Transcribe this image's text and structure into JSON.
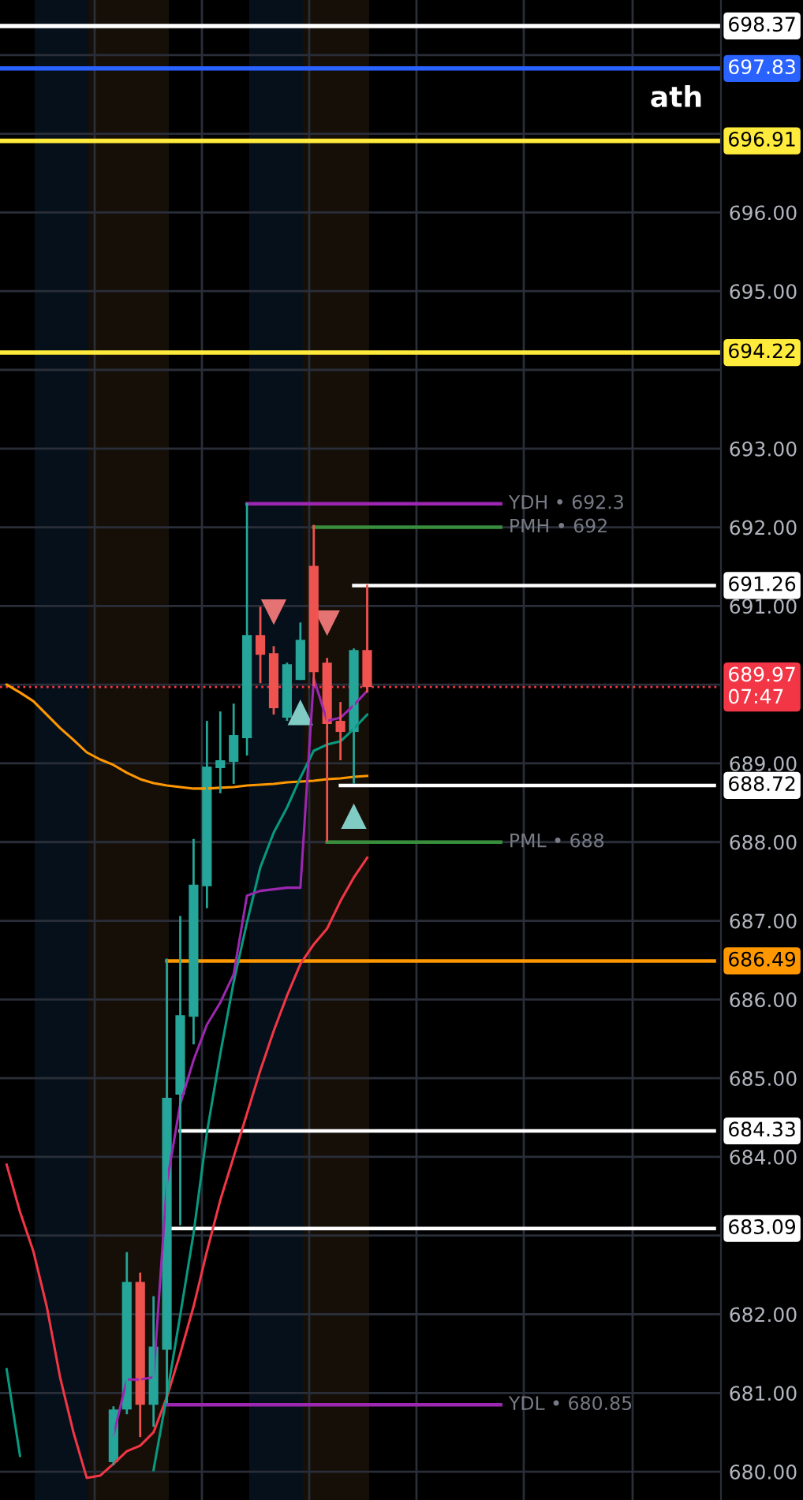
{
  "chart_data": {
    "type": "candlestick",
    "categories": [
      null,
      null,
      null,
      null,
      null,
      null,
      null,
      null,
      null,
      null,
      null,
      null,
      null,
      null,
      null,
      null,
      null,
      null,
      null,
      null,
      null,
      null,
      null,
      null,
      null,
      null,
      null,
      null,
      null,
      null,
      null,
      null,
      null,
      null,
      null,
      null,
      null,
      null,
      null,
      null,
      null,
      null,
      null,
      null,
      null,
      null,
      null,
      null,
      null,
      null,
      null,
      null,
      null,
      null
    ],
    "ohlc": [
      null,
      null,
      null,
      null,
      null,
      null,
      null,
      null,
      [
        680.12,
        680.83,
        680.08,
        680.79
      ],
      [
        680.79,
        682.79,
        680.73,
        682.41
      ],
      [
        682.41,
        682.53,
        680.44,
        680.85
      ],
      [
        680.85,
        682.23,
        680.57,
        681.59
      ],
      [
        681.55,
        686.52,
        680.87,
        684.75
      ],
      [
        684.79,
        687.06,
        683.13,
        685.8
      ],
      [
        685.78,
        688.04,
        685.43,
        687.46
      ],
      [
        687.44,
        689.54,
        687.16,
        688.96
      ],
      [
        688.94,
        689.66,
        688.62,
        689.04
      ],
      [
        689.02,
        689.76,
        688.74,
        689.36
      ],
      [
        689.32,
        692.31,
        689.1,
        690.63
      ],
      [
        690.63,
        690.99,
        690.02,
        690.38
      ],
      [
        690.4,
        690.49,
        689.62,
        689.7
      ],
      [
        689.58,
        690.28,
        689.54,
        690.26
      ],
      [
        690.06,
        690.79,
        690.06,
        690.57
      ],
      [
        691.51,
        692.03,
        689.98,
        690.16
      ],
      [
        690.28,
        690.34,
        688.0,
        689.5
      ],
      [
        689.54,
        689.78,
        689.04,
        689.4
      ],
      [
        689.4,
        690.46,
        688.74,
        690.44
      ],
      [
        690.44,
        691.27,
        689.9,
        689.97
      ],
      null,
      null,
      null,
      null,
      null,
      null,
      null,
      null,
      null,
      null,
      null,
      null,
      null,
      null,
      null,
      null,
      null,
      null,
      null,
      null,
      null,
      null,
      null,
      null,
      null,
      null
    ],
    "colors": [
      null,
      null,
      null,
      null,
      null,
      null,
      null,
      null,
      "#26a69a",
      "#26a69a",
      "#ef5350",
      "#26a69a",
      "#26a69a",
      "#26a69a",
      "#26a69a",
      "#26a69a",
      "#26a69a",
      "#26a69a",
      "#26a69a",
      "#ef5350",
      "#ef5350",
      "#26a69a",
      "#26a69a",
      "#ef5350",
      "#ef5350",
      "#ef5350",
      "#26a69a",
      "#ef5350",
      null,
      null,
      null,
      null,
      null,
      null,
      null,
      null,
      null,
      null,
      null,
      null,
      null,
      null,
      null,
      null,
      null,
      null,
      null,
      null,
      null,
      null,
      null,
      null,
      null,
      null
    ],
    "series": [
      {
        "type": "line",
        "color": "#ff9800",
        "values": [
          690.0,
          689.9,
          689.79,
          689.62,
          689.45,
          689.3,
          689.14,
          689.05,
          688.98,
          688.88,
          688.8,
          688.75,
          688.72,
          688.7,
          688.68,
          688.68,
          688.69,
          688.7,
          688.72,
          688.73,
          688.74,
          688.76,
          688.77,
          688.78,
          688.8,
          688.81,
          688.83,
          688.84,
          null,
          null,
          null,
          null,
          null,
          null,
          null,
          null,
          null,
          null,
          null,
          null,
          null,
          null,
          null,
          null,
          null,
          null,
          null,
          null,
          null,
          null,
          null,
          null,
          null,
          null
        ]
      },
      {
        "type": "line",
        "color": "#f23645",
        "values": [
          683.9,
          683.3,
          682.8,
          682.1,
          681.2,
          680.5,
          679.92,
          679.95,
          680.1,
          680.26,
          680.33,
          680.5,
          680.95,
          681.5,
          682.1,
          682.8,
          683.45,
          684.0,
          684.55,
          685.1,
          685.6,
          686.05,
          686.45,
          686.7,
          686.9,
          687.25,
          687.55,
          687.8,
          null,
          null,
          null,
          null,
          null,
          null,
          null,
          null,
          null,
          null,
          null,
          null,
          null,
          null,
          null,
          null,
          null,
          null,
          null,
          null,
          null,
          null,
          null,
          null,
          null,
          null
        ]
      },
      {
        "type": "line",
        "color": "#089981",
        "values": [
          681.3,
          680.2,
          null,
          null,
          null,
          null,
          null,
          null,
          null,
          null,
          null,
          680.02,
          680.97,
          681.99,
          683.03,
          684.31,
          685.31,
          686.22,
          686.98,
          687.68,
          688.12,
          688.44,
          688.82,
          689.16,
          689.24,
          689.28,
          689.44,
          689.62,
          null,
          null,
          null,
          null,
          null,
          null,
          null,
          null,
          null,
          null,
          null,
          null,
          null,
          null,
          null,
          null,
          null,
          null,
          null,
          null,
          null,
          null,
          null,
          null,
          null,
          null
        ]
      },
      {
        "type": "line",
        "color": "#9c27b0",
        "values": [
          null,
          null,
          null,
          null,
          null,
          null,
          null,
          null,
          680.46,
          681.17,
          681.17,
          681.2,
          683.67,
          684.67,
          685.23,
          685.68,
          685.96,
          686.32,
          687.32,
          687.38,
          687.4,
          687.42,
          687.42,
          690.08,
          689.54,
          689.58,
          689.74,
          689.92,
          null,
          null,
          null,
          null,
          null,
          null,
          null,
          null,
          null,
          null,
          null,
          null,
          null,
          null,
          null,
          null,
          null,
          null,
          null,
          null,
          null,
          null,
          null,
          null,
          null,
          null
        ]
      },
      {
        "type": "line",
        "name": "686.49",
        "color": "#ff9800",
        "values": [
          null,
          null,
          null,
          null,
          null,
          null,
          null,
          null,
          null,
          null,
          null,
          null,
          686.49,
          686.49,
          686.49,
          686.49,
          686.49,
          686.49,
          686.49,
          686.49,
          686.49,
          686.49,
          686.49,
          686.49,
          686.49,
          686.49,
          686.49,
          686.49,
          686.49,
          686.49,
          686.49,
          686.49,
          686.49,
          686.49,
          686.49,
          686.49,
          686.49,
          686.49,
          686.49,
          686.49,
          686.49,
          686.49,
          686.49,
          686.49,
          686.49,
          686.49,
          686.49,
          686.49,
          686.49,
          686.49,
          686.49,
          686.49,
          686.49,
          686.49
        ]
      },
      {
        "type": "line",
        "name": "684.33",
        "color": "#ffffff",
        "values": [
          null,
          null,
          null,
          null,
          null,
          null,
          null,
          null,
          null,
          null,
          null,
          null,
          null,
          684.33,
          684.33,
          684.33,
          684.33,
          684.33,
          684.33,
          684.33,
          684.33,
          684.33,
          684.33,
          684.33,
          684.33,
          684.33,
          684.33,
          684.33,
          684.33,
          684.33,
          684.33,
          684.33,
          684.33,
          684.33,
          684.33,
          684.33,
          684.33,
          684.33,
          684.33,
          684.33,
          684.33,
          684.33,
          684.33,
          684.33,
          684.33,
          684.33,
          684.33,
          684.33,
          684.33,
          684.33,
          684.33,
          684.33,
          684.33,
          684.33
        ]
      },
      {
        "type": "line",
        "name": "683.09",
        "color": "#ffffff",
        "values": [
          null,
          null,
          null,
          null,
          null,
          null,
          null,
          null,
          null,
          null,
          null,
          null,
          683.09,
          683.09,
          683.09,
          683.09,
          683.09,
          683.09,
          683.09,
          683.09,
          683.09,
          683.09,
          683.09,
          683.09,
          683.09,
          683.09,
          683.09,
          683.09,
          683.09,
          683.09,
          683.09,
          683.09,
          683.09,
          683.09,
          683.09,
          683.09,
          683.09,
          683.09,
          683.09,
          683.09,
          683.09,
          683.09,
          683.09,
          683.09,
          683.09,
          683.09,
          683.09,
          683.09,
          683.09,
          683.09,
          683.09,
          683.09,
          683.09,
          683.09
        ]
      },
      {
        "type": "line",
        "name": "688.72",
        "color": "#ffffff",
        "values": [
          null,
          null,
          null,
          null,
          null,
          null,
          null,
          null,
          null,
          null,
          null,
          null,
          null,
          null,
          null,
          null,
          null,
          null,
          null,
          null,
          null,
          null,
          null,
          null,
          null,
          688.72,
          688.72,
          688.72,
          688.72,
          688.72,
          688.72,
          688.72,
          688.72,
          688.72,
          688.72,
          688.72,
          688.72,
          688.72,
          688.72,
          688.72,
          688.72,
          688.72,
          688.72,
          688.72,
          688.72,
          688.72,
          688.72,
          688.72,
          688.72,
          688.72,
          688.72,
          688.72,
          688.72,
          688.72
        ]
      },
      {
        "type": "line",
        "name": "691.26",
        "color": "#ffffff",
        "values": [
          null,
          null,
          null,
          null,
          null,
          null,
          null,
          null,
          null,
          null,
          null,
          null,
          null,
          null,
          null,
          null,
          null,
          null,
          null,
          null,
          null,
          null,
          null,
          null,
          null,
          null,
          691.26,
          691.26,
          691.26,
          691.26,
          691.26,
          691.26,
          691.26,
          691.26,
          691.26,
          691.26,
          691.26,
          691.26,
          691.26,
          691.26,
          691.26,
          691.26,
          691.26,
          691.26,
          691.26,
          691.26,
          691.26,
          691.26,
          691.26,
          691.26,
          691.26,
          691.26,
          691.26,
          691.26
        ]
      },
      {
        "type": "line",
        "name": "YDH • 692.3",
        "color": "#9c27b0",
        "values": [
          null,
          null,
          null,
          null,
          null,
          null,
          null,
          null,
          null,
          null,
          null,
          null,
          null,
          null,
          null,
          null,
          null,
          null,
          692.3,
          692.3,
          692.3,
          692.3,
          692.3,
          692.3,
          692.3,
          692.3,
          692.3,
          692.3,
          692.3,
          692.3,
          692.3,
          692.3,
          692.3,
          692.3,
          692.3,
          692.3,
          692.3,
          692.3,
          null,
          null,
          null,
          null,
          null,
          null,
          null,
          null,
          null,
          null,
          null,
          null,
          null,
          null,
          null,
          null
        ]
      },
      {
        "type": "line",
        "name": "PMH • 692",
        "color": "#388e3c",
        "values": [
          null,
          null,
          null,
          null,
          null,
          null,
          null,
          null,
          null,
          null,
          null,
          null,
          null,
          null,
          null,
          null,
          null,
          null,
          null,
          null,
          null,
          null,
          null,
          692,
          692,
          692,
          692,
          692,
          692,
          692,
          692,
          692,
          692,
          692,
          692,
          692,
          692,
          692,
          null,
          null,
          null,
          null,
          null,
          null,
          null,
          null,
          null,
          null,
          null,
          null,
          null,
          null,
          null,
          null
        ]
      },
      {
        "type": "line",
        "name": "PML • 688",
        "color": "#388e3c",
        "values": [
          null,
          null,
          null,
          null,
          null,
          null,
          null,
          null,
          null,
          null,
          null,
          null,
          null,
          null,
          null,
          null,
          null,
          null,
          null,
          null,
          null,
          null,
          null,
          null,
          688,
          688,
          688,
          688,
          688,
          688,
          688,
          688,
          688,
          688,
          688,
          688,
          688,
          688,
          null,
          null,
          null,
          null,
          null,
          null,
          null,
          null,
          null,
          null,
          null,
          null,
          null,
          null,
          null,
          null
        ]
      },
      {
        "type": "line",
        "name": "YDL • 680.85",
        "color": "#9c27b0",
        "values": [
          null,
          null,
          null,
          null,
          null,
          null,
          null,
          null,
          null,
          null,
          null,
          null,
          680.85,
          680.85,
          680.85,
          680.85,
          680.85,
          680.85,
          680.85,
          680.85,
          680.85,
          680.85,
          680.85,
          680.85,
          680.85,
          680.85,
          680.85,
          680.85,
          680.85,
          680.85,
          680.85,
          680.85,
          680.85,
          680.85,
          680.85,
          680.85,
          680.85,
          680.85,
          null,
          null,
          null,
          null,
          null,
          null,
          null,
          null,
          null,
          null,
          null,
          null,
          null,
          null,
          null,
          null
        ]
      },
      {
        "type": "scatter",
        "marker": "triangle_down",
        "color": "#e57373",
        "values": [
          null,
          null,
          null,
          null,
          null,
          null,
          null,
          null,
          null,
          null,
          null,
          null,
          null,
          null,
          null,
          null,
          null,
          null,
          null,
          null,
          690.93,
          null,
          null,
          null,
          690.79,
          null,
          null,
          null,
          null,
          null,
          null,
          null,
          null,
          null,
          null,
          null,
          null,
          null,
          null,
          null,
          null,
          null,
          null,
          null,
          null,
          null,
          null,
          null,
          null,
          null,
          null,
          null,
          null,
          null
        ]
      },
      {
        "type": "scatter",
        "marker": "triangle",
        "color": "#80cbc4",
        "values": [
          null,
          null,
          null,
          null,
          null,
          null,
          null,
          null,
          null,
          null,
          null,
          null,
          null,
          null,
          null,
          null,
          null,
          null,
          null,
          null,
          null,
          null,
          689.64,
          null,
          null,
          null,
          688.32,
          null,
          null,
          null,
          null,
          null,
          null,
          null,
          null,
          null,
          null,
          null,
          null,
          null,
          null,
          null,
          null,
          null,
          null,
          null,
          null,
          null,
          null,
          null,
          null,
          null,
          null,
          null
        ]
      }
    ],
    "ref_lines": [
      {
        "axis": "y",
        "value": 698.37,
        "label": "698.37",
        "color": "#ffffff",
        "line_style": "solid"
      },
      {
        "axis": "y",
        "value": 697.83,
        "label": "697.83",
        "color": "#2962ff",
        "line_style": "solid"
      },
      {
        "axis": "y",
        "value": 696.91,
        "label": "696.91",
        "color": "#ffeb3b",
        "line_style": "solid"
      },
      {
        "axis": "y",
        "value": 694.22,
        "label": "694.22",
        "color": "#ffeb3b",
        "line_style": "solid"
      },
      {
        "axis": "y",
        "value": 689.97,
        "label": "689.97\n07:47",
        "color": "#f23645",
        "line_style": "dotted"
      }
    ],
    "annotations": [
      "ath"
    ],
    "ylim": [
      679.64,
      698.7
    ],
    "yticks": [
      {
        "value": 680,
        "label": "680.00"
      },
      {
        "value": 681,
        "label": "681.00"
      },
      {
        "value": 682,
        "label": "682.00"
      },
      {
        "value": 683,
        "label": null
      },
      {
        "value": 684,
        "label": "684.00"
      },
      {
        "value": 685,
        "label": "685.00"
      },
      {
        "value": 686,
        "label": "686.00"
      },
      {
        "value": 687,
        "label": "687.00"
      },
      {
        "value": 688,
        "label": "688.00"
      },
      {
        "value": 689,
        "label": "689.00"
      },
      {
        "value": 690,
        "label": null
      },
      {
        "value": 691,
        "label": "691.00"
      },
      {
        "value": 692,
        "label": "692.00"
      },
      {
        "value": 693,
        "label": "693.00"
      },
      {
        "value": 694,
        "label": null
      },
      {
        "value": 695,
        "label": "695.00"
      },
      {
        "value": 696,
        "label": "696.00"
      },
      {
        "value": 697,
        "label": null
      },
      {
        "value": 698,
        "label": null
      }
    ],
    "grid": true,
    "tick_labels": "y"
  }
}
